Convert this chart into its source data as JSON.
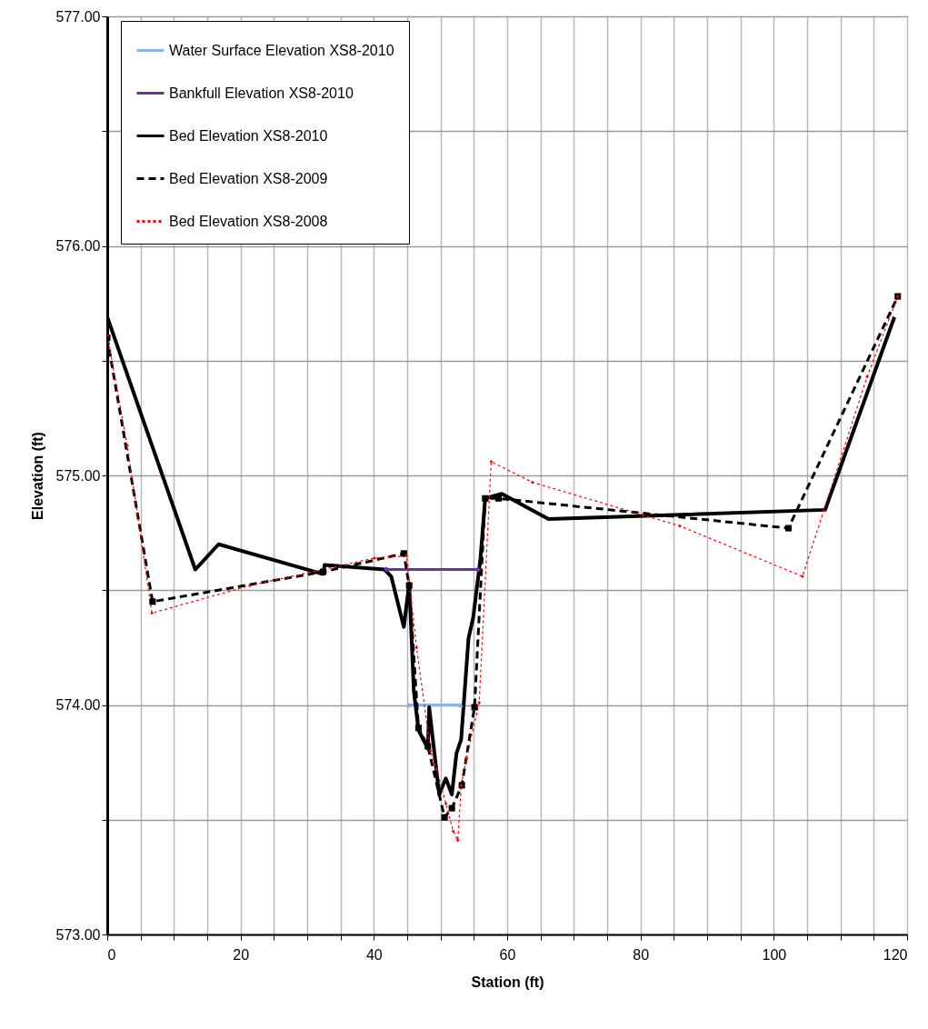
{
  "chart_data": {
    "type": "line",
    "xlabel": "Station (ft)",
    "ylabel": "Elevation (ft)",
    "xlim": [
      0,
      120
    ],
    "ylim": [
      573,
      577
    ],
    "xticks": [
      0,
      {
        "value": 5,
        "label": null
      },
      {
        "value": 10,
        "label": null
      },
      {
        "value": 15,
        "label": null
      },
      20,
      {
        "value": 25,
        "label": null
      },
      {
        "value": 30,
        "label": null
      },
      {
        "value": 35,
        "label": null
      },
      40,
      {
        "value": 45,
        "label": null
      },
      {
        "value": 50,
        "label": null
      },
      {
        "value": 55,
        "label": null
      },
      60,
      {
        "value": 65,
        "label": null
      },
      {
        "value": 70,
        "label": null
      },
      {
        "value": 75,
        "label": null
      },
      80,
      {
        "value": 85,
        "label": null
      },
      {
        "value": 90,
        "label": null
      },
      {
        "value": 95,
        "label": null
      },
      100,
      {
        "value": 105,
        "label": null
      },
      {
        "value": 110,
        "label": null
      },
      {
        "value": 115,
        "label": null
      },
      120
    ],
    "yticks": [
      {
        "value": 573,
        "label": "573.00"
      },
      {
        "value": 573.5,
        "label": null
      },
      {
        "value": 574,
        "label": "574.00"
      },
      {
        "value": 574.5,
        "label": null
      },
      {
        "value": 575,
        "label": "575.00"
      },
      {
        "value": 575.5,
        "label": null
      },
      {
        "value": 576,
        "label": "576.00"
      },
      {
        "value": 576.5,
        "label": null
      },
      {
        "value": 577,
        "label": "577.00"
      }
    ],
    "grid": true,
    "legend": "top left",
    "series": [
      {
        "name": "Water Surface Elevation XS8-2010",
        "color": "#8db3e2",
        "marker": "triangle",
        "line_style": "solid",
        "x": [
          45.2,
          53.0
        ],
        "values": [
          574.0,
          574.0
        ]
      },
      {
        "name": "Bankfull Elevation XS8-2010",
        "color": "#7030a0",
        "marker": "diamond",
        "line_style": "solid",
        "x": [
          41.9,
          55.6
        ],
        "values": [
          574.59,
          574.59
        ]
      },
      {
        "name": "Bed Elevation XS8-2010",
        "color": "#000000",
        "marker": "none",
        "line_style": "solid",
        "x": [
          0,
          13.2,
          16.7,
          32.4,
          32.6,
          41.6,
          42.6,
          44.5,
          45.3,
          46.0,
          46.7,
          48.1,
          48.3,
          49.8,
          50.8,
          51.7,
          52.4,
          53.1,
          54.2,
          54.9,
          56.0,
          56.7,
          59.2,
          66.2,
          107.7,
          118.1
        ],
        "values": [
          575.69,
          574.59,
          574.7,
          574.57,
          574.61,
          574.59,
          574.56,
          574.34,
          574.53,
          574.06,
          573.89,
          573.81,
          573.99,
          573.61,
          573.68,
          573.61,
          573.79,
          573.85,
          574.29,
          574.38,
          574.64,
          574.9,
          574.92,
          574.81,
          574.85,
          575.69
        ]
      },
      {
        "name": "Bed Elevation XS8-2009",
        "color": "#000000",
        "marker": "square",
        "line_style": "dashed",
        "x": [
          0,
          6.8,
          32.4,
          44.5,
          45.3,
          46.7,
          48.1,
          50.6,
          51.7,
          53.2,
          55.1,
          56.7,
          58.7,
          102.2,
          118.6
        ],
        "values": [
          575.6,
          574.45,
          574.58,
          574.66,
          574.52,
          573.9,
          573.82,
          573.51,
          573.55,
          573.65,
          573.99,
          574.9,
          574.9,
          574.77,
          575.78
        ]
      },
      {
        "name": "Bed Elevation XS8-2008",
        "color": "#ff0000",
        "marker": "diamond",
        "line_style": "dotted",
        "x": [
          0,
          3.0,
          6.7,
          21.4,
          40.1,
          44.9,
          46.4,
          48.5,
          49.4,
          50.8,
          51.9,
          52.6,
          53.1,
          53.9,
          55.8,
          57.6,
          63.8,
          85.9,
          104.3,
          114.0,
          118.6
        ],
        "values": [
          575.61,
          575.13,
          574.4,
          574.52,
          574.64,
          574.65,
          574.25,
          573.8,
          573.72,
          573.57,
          573.45,
          573.41,
          573.65,
          573.77,
          574.01,
          575.06,
          574.97,
          574.78,
          574.56,
          575.43,
          575.78
        ]
      }
    ]
  }
}
